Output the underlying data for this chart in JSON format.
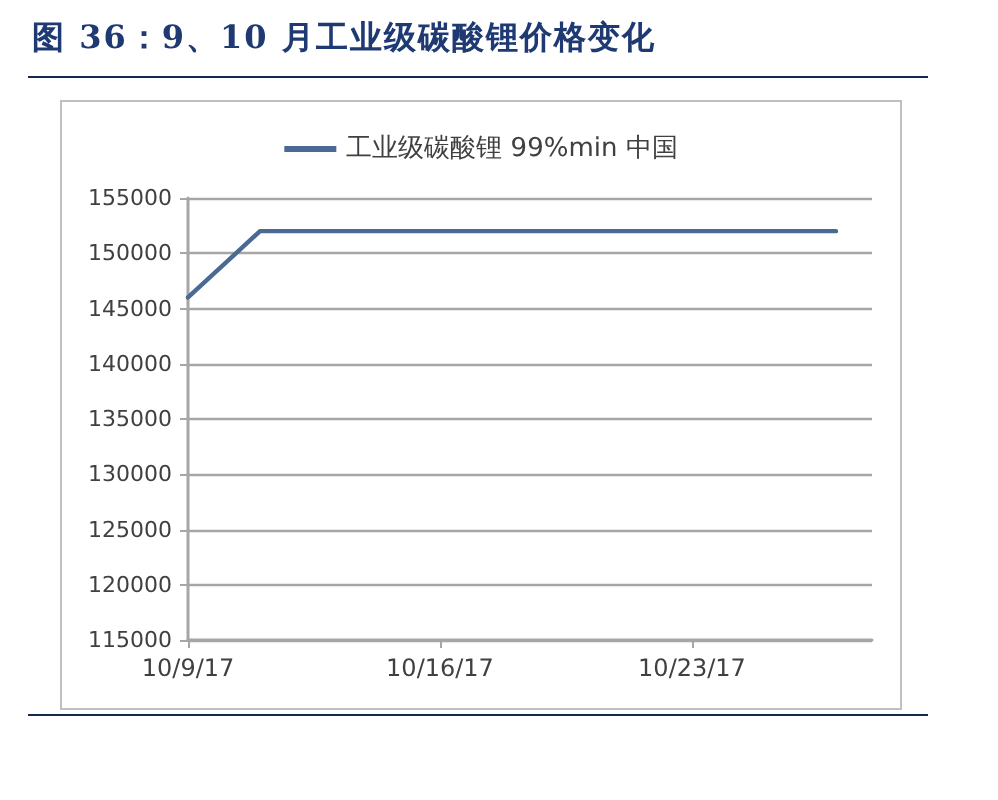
{
  "chart_data": {
    "type": "line",
    "title": "图 36：9、10 月工业级碳酸锂价格变化",
    "x": [
      "--10-09",
      "--10-11",
      "--10-27"
    ],
    "series": [
      {
        "name": "工业级碳酸锂 99%min 中国",
        "color": "#4a6a93",
        "values": [
          146000,
          152000,
          152000
        ]
      }
    ],
    "xlim": [
      "--10-09",
      "--10-28"
    ],
    "xticks": [
      {
        "value": "--10-09",
        "label": "10/9/17"
      },
      {
        "value": "--10-16",
        "label": "10/16/17"
      },
      {
        "value": "--10-23",
        "label": "10/23/17"
      }
    ],
    "ylim": [
      115000,
      155000
    ],
    "yticks": [
      115000,
      120000,
      125000,
      130000,
      135000,
      140000,
      145000,
      150000,
      155000
    ],
    "grid": "y",
    "legend": "top",
    "marker": "none",
    "line_style": "solid"
  }
}
